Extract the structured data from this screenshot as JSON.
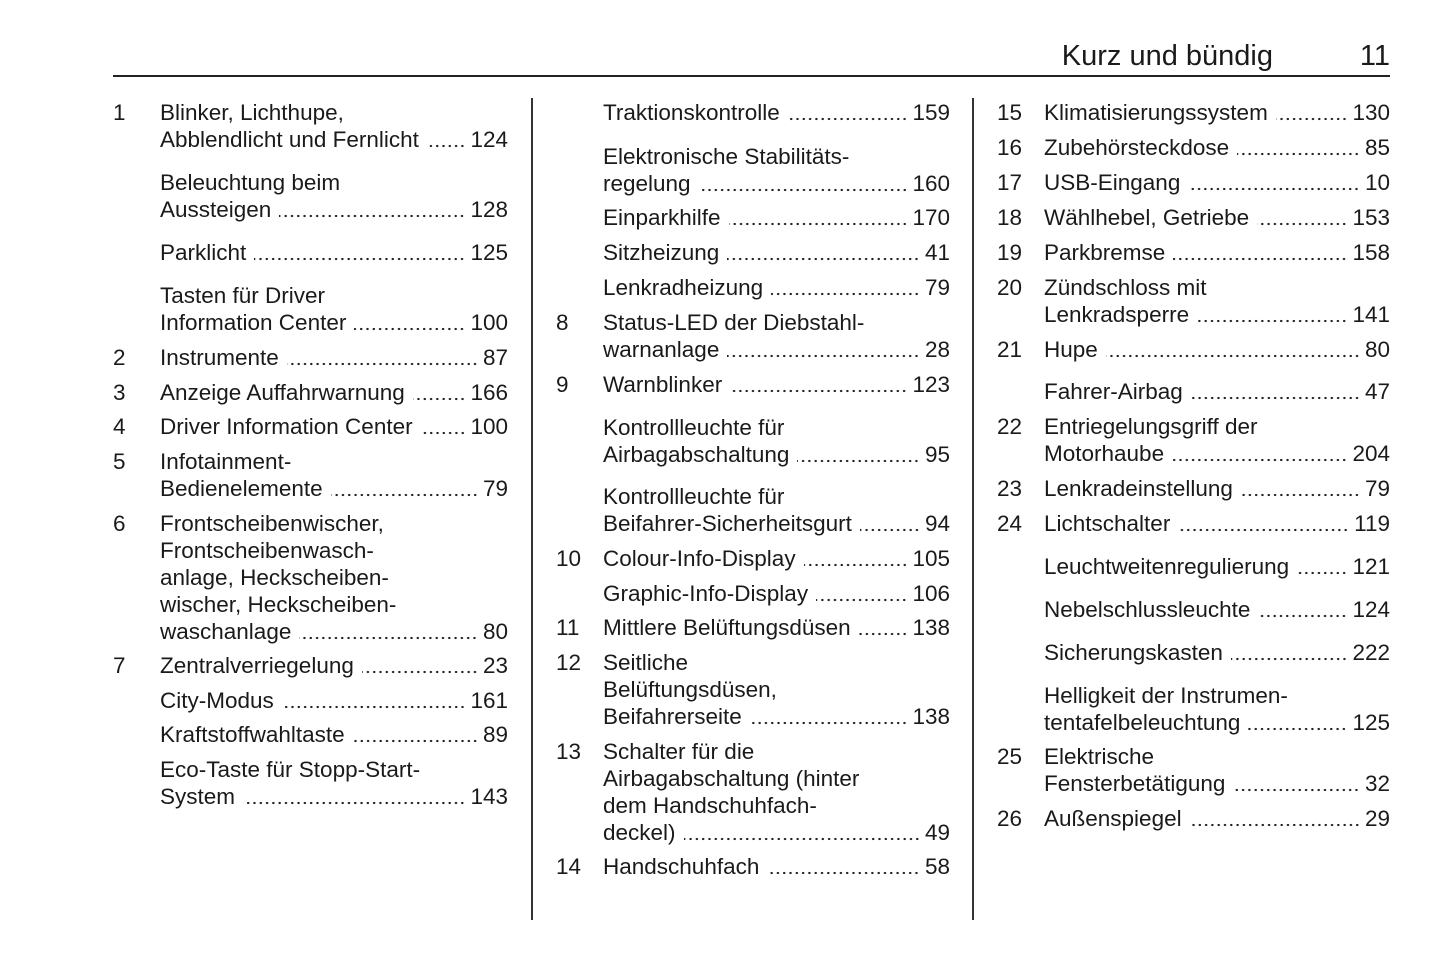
{
  "header": {
    "title": "Kurz und bündig",
    "page_number": "11"
  },
  "columns": [
    [
      {
        "num": "1",
        "lines": [
          "Blinker, Lichthupe,",
          "Abblendlicht und Fernlicht"
        ],
        "page": "124"
      },
      {
        "num": "",
        "lines": [
          "Beleuchtung beim",
          "Aussteigen"
        ],
        "page": "128"
      },
      {
        "num": "",
        "lines": [
          "Parklicht"
        ],
        "page": "125"
      },
      {
        "num": "",
        "lines": [
          "Tasten für Driver",
          "Information Center"
        ],
        "page": "100"
      },
      {
        "num": "2",
        "lines": [
          "Instrumente"
        ],
        "page": "87"
      },
      {
        "num": "3",
        "lines": [
          "Anzeige Auffahrwarnung"
        ],
        "page": "166"
      },
      {
        "num": "4",
        "lines": [
          "Driver Information Center"
        ],
        "page": "100"
      },
      {
        "num": "5",
        "lines": [
          "Infotainment-",
          "Bedienelemente"
        ],
        "page": "79"
      },
      {
        "num": "6",
        "lines": [
          "Frontscheibenwischer,",
          "Frontscheibenwasch-",
          "anlage, Heckscheiben-",
          "wischer, Heckscheiben-",
          "waschanlage"
        ],
        "page": "80"
      },
      {
        "num": "7",
        "lines": [
          "Zentralverriegelung"
        ],
        "page": "23"
      },
      {
        "num": "",
        "lines": [
          "City-Modus"
        ],
        "page": "161"
      },
      {
        "num": "",
        "lines": [
          "Kraftstoffwahltaste"
        ],
        "page": "89"
      },
      {
        "num": "",
        "lines": [
          "Eco-Taste für Stopp-Start-",
          "System"
        ],
        "page": "143"
      }
    ],
    [
      {
        "num": "",
        "lines": [
          "Traktionskontrolle"
        ],
        "page": "159"
      },
      {
        "num": "",
        "lines": [
          "Elektronische Stabilitäts-",
          "regelung"
        ],
        "page": "160"
      },
      {
        "num": "",
        "lines": [
          "Einparkhilfe"
        ],
        "page": "170"
      },
      {
        "num": "",
        "lines": [
          "Sitzheizung"
        ],
        "page": "41"
      },
      {
        "num": "",
        "lines": [
          "Lenkradheizung"
        ],
        "page": "79"
      },
      {
        "num": "8",
        "lines": [
          "Status-LED der Diebstahl-",
          "warnanlage"
        ],
        "page": "28"
      },
      {
        "num": "9",
        "lines": [
          "Warnblinker"
        ],
        "page": "123"
      },
      {
        "num": "",
        "lines": [
          "Kontrollleuchte für",
          "Airbagabschaltung"
        ],
        "page": "95"
      },
      {
        "num": "",
        "lines": [
          "Kontrollleuchte für",
          "Beifahrer-Sicherheitsgurt"
        ],
        "page": "94"
      },
      {
        "num": "10",
        "lines": [
          "Colour-Info-Display"
        ],
        "page": "105"
      },
      {
        "num": "",
        "lines": [
          "Graphic-Info-Display"
        ],
        "page": "106"
      },
      {
        "num": "11",
        "lines": [
          "Mittlere Belüftungsdüsen"
        ],
        "page": "138"
      },
      {
        "num": "12",
        "lines": [
          "Seitliche",
          "Belüftungsdüsen,",
          "Beifahrerseite"
        ],
        "page": "138"
      },
      {
        "num": "13",
        "lines": [
          "Schalter für die",
          "Airbagabschaltung (hinter",
          "dem Handschuhfach-",
          "deckel)"
        ],
        "page": "49"
      },
      {
        "num": "14",
        "lines": [
          "Handschuhfach"
        ],
        "page": "58"
      }
    ],
    [
      {
        "num": "15",
        "lines": [
          "Klimatisierungssystem"
        ],
        "page": "130"
      },
      {
        "num": "16",
        "lines": [
          "Zubehörsteckdose"
        ],
        "page": "85"
      },
      {
        "num": "17",
        "lines": [
          "USB-Eingang"
        ],
        "page": "10"
      },
      {
        "num": "18",
        "lines": [
          "Wählhebel, Getriebe"
        ],
        "page": "153"
      },
      {
        "num": "19",
        "lines": [
          "Parkbremse"
        ],
        "page": "158"
      },
      {
        "num": "20",
        "lines": [
          "Zündschloss mit",
          "Lenkradsperre"
        ],
        "page": "141"
      },
      {
        "num": "21",
        "lines": [
          "Hupe"
        ],
        "page": "80"
      },
      {
        "num": "",
        "lines": [
          "Fahrer-Airbag"
        ],
        "page": "47"
      },
      {
        "num": "22",
        "lines": [
          "Entriegelungsgriff der",
          "Motorhaube"
        ],
        "page": "204"
      },
      {
        "num": "23",
        "lines": [
          "Lenkradeinstellung"
        ],
        "page": "79"
      },
      {
        "num": "24",
        "lines": [
          "Lichtschalter"
        ],
        "page": "119"
      },
      {
        "num": "",
        "lines": [
          "Leuchtweitenregulierung"
        ],
        "page": "121"
      },
      {
        "num": "",
        "lines": [
          "Nebelschlussleuchte"
        ],
        "page": "124"
      },
      {
        "num": "",
        "lines": [
          "Sicherungskasten"
        ],
        "page": "222"
      },
      {
        "num": "",
        "lines": [
          "Helligkeit der Instrumen-",
          "tentafelbeleuchtung"
        ],
        "page": "125"
      },
      {
        "num": "25",
        "lines": [
          "Elektrische",
          "Fensterbetätigung"
        ],
        "page": "32"
      },
      {
        "num": "26",
        "lines": [
          "Außenspiegel"
        ],
        "page": "29"
      }
    ]
  ]
}
